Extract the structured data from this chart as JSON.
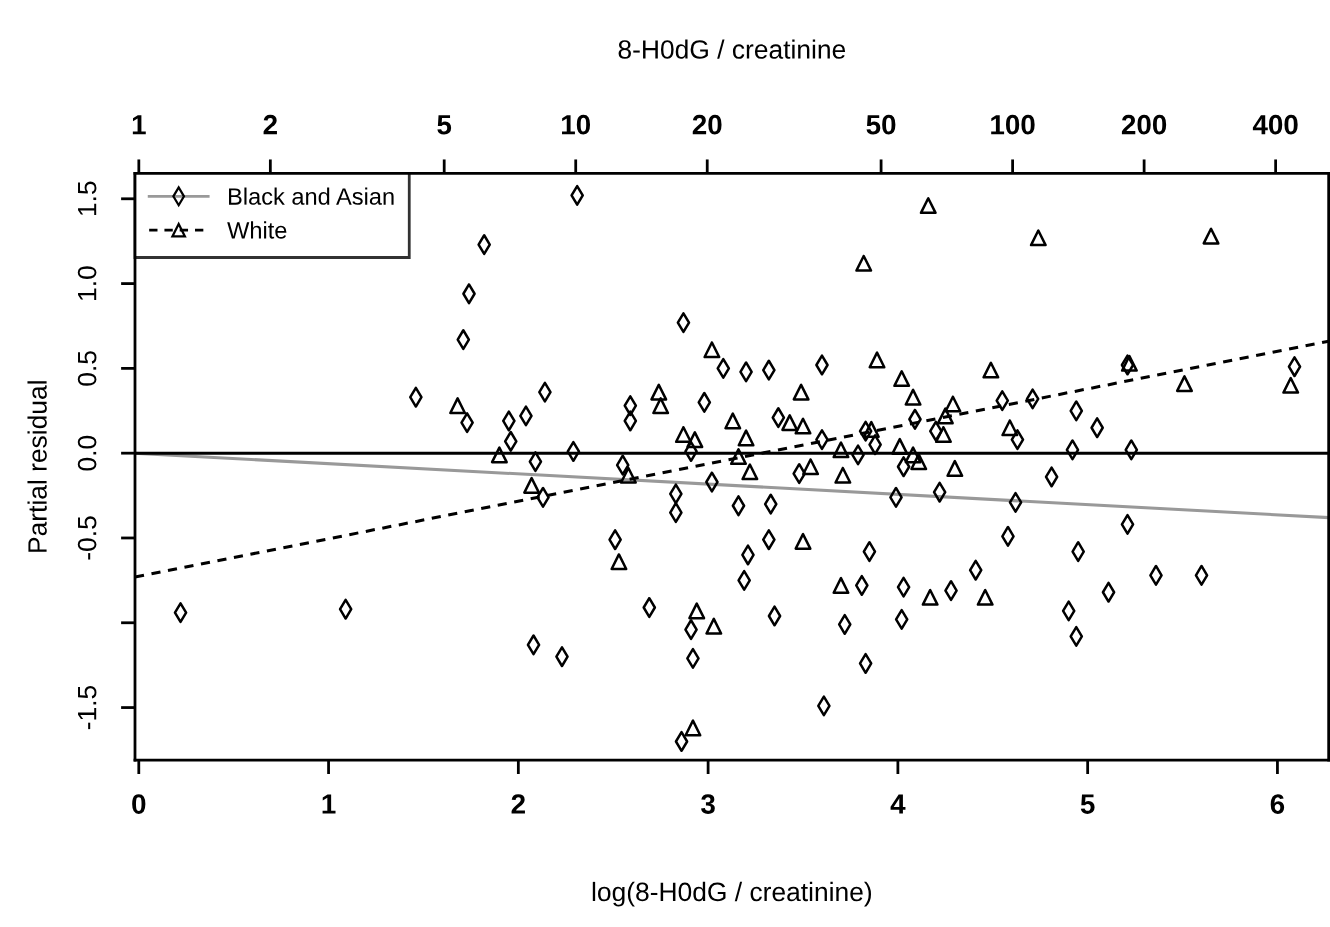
{
  "chart_data": {
    "type": "scatter",
    "xlabel": "log(8-H0dG / creatinine)",
    "ylabel": "Partial residual",
    "x2label": "8-H0dG / creatinine",
    "xlim": [
      -0.02,
      6.27
    ],
    "ylim": [
      -1.81,
      1.65
    ],
    "xticks": [
      0,
      1,
      2,
      3,
      4,
      5,
      6
    ],
    "yticks": [
      {
        "value": -1.5,
        "label": "-1.5"
      },
      {
        "value": -1.0,
        "label": null
      },
      {
        "value": -0.5,
        "label": "-0.5"
      },
      {
        "value": 0,
        "label": "0.0"
      },
      {
        "value": 0.5,
        "label": "0.5"
      },
      {
        "value": 1.0,
        "label": "1.0"
      },
      {
        "value": 1.5,
        "label": "1.5"
      }
    ],
    "x2lim": [
      0.98,
      529
    ],
    "log": "x2",
    "x2ticks": [
      1,
      2,
      5,
      10,
      20,
      50,
      100,
      200,
      400
    ],
    "grid": false,
    "legend": "top left",
    "ref_lines": [
      {
        "axis": "y",
        "value": 0,
        "color": "#000000",
        "line_style": "solid"
      }
    ],
    "series": [
      {
        "name": "Black and Asian",
        "marker": "diamond",
        "color": "#000000",
        "x": [
          0.22,
          1.09,
          1.46,
          1.73,
          1.71,
          1.74,
          1.82,
          1.95,
          2.04,
          1.96,
          2.14,
          2.09,
          2.13,
          2.08,
          2.23,
          2.31,
          2.29,
          2.59,
          2.59,
          2.55,
          2.51,
          2.69,
          2.87,
          2.98,
          2.91,
          2.83,
          2.83,
          3.02,
          3.08,
          3.2,
          3.32,
          3.16,
          3.33,
          3.21,
          3.32,
          3.19,
          3.35,
          2.91,
          2.92,
          2.86,
          3.37,
          3.48,
          3.6,
          3.6,
          3.61,
          3.72,
          3.81,
          3.85,
          3.83,
          3.79,
          3.83,
          3.88,
          4.09,
          3.99,
          4.03,
          4.02,
          4.03,
          4.22,
          4.55,
          4.71,
          4.94,
          5.05,
          4.92,
          5.23,
          4.63,
          4.2,
          4.81,
          4.62,
          4.58,
          5.21,
          4.95,
          4.41,
          4.28,
          5.36,
          5.6,
          5.11,
          4.9,
          4.94,
          6.09,
          5.21
        ],
        "values": [
          -0.94,
          -0.92,
          0.33,
          0.18,
          0.67,
          0.94,
          1.23,
          0.19,
          0.22,
          0.07,
          0.36,
          -0.05,
          -0.26,
          -1.13,
          -1.2,
          1.52,
          0.01,
          0.28,
          0.19,
          -0.07,
          -0.51,
          -0.91,
          0.77,
          0.3,
          0.01,
          -0.24,
          -0.35,
          -0.17,
          0.5,
          0.48,
          0.49,
          -0.31,
          -0.3,
          -0.6,
          -0.51,
          -0.75,
          -0.96,
          -1.04,
          -1.21,
          -1.7,
          0.21,
          -0.12,
          0.52,
          0.08,
          -1.49,
          -1.01,
          -0.78,
          -0.58,
          -1.24,
          -0.01,
          0.13,
          0.05,
          0.2,
          -0.26,
          -0.79,
          -0.98,
          -0.08,
          -0.23,
          0.31,
          0.32,
          0.25,
          0.15,
          0.02,
          0.02,
          0.08,
          0.13,
          -0.14,
          -0.29,
          -0.49,
          -0.42,
          -0.58,
          -0.69,
          -0.81,
          -0.72,
          -0.72,
          -0.82,
          -0.93,
          -1.08,
          0.51,
          0.52
        ]
      },
      {
        "type": "line",
        "color": "#999999",
        "line_style": "solid",
        "x": [
          -0.02,
          6.27
        ],
        "values": [
          0.0,
          -0.38
        ]
      },
      {
        "name": "White",
        "marker": "triangle",
        "color": "#000000",
        "x": [
          1.68,
          1.9,
          2.07,
          2.74,
          2.75,
          2.58,
          2.53,
          2.87,
          2.93,
          3.02,
          3.13,
          3.2,
          3.16,
          3.22,
          3.49,
          3.43,
          3.5,
          3.54,
          3.5,
          3.7,
          3.7,
          3.71,
          3.82,
          3.89,
          4.02,
          4.08,
          4.16,
          4.17,
          2.94,
          3.03,
          2.92,
          3.86,
          4.01,
          4.08,
          4.11,
          4.74,
          5.65,
          4.49,
          5.22,
          5.51,
          6.07,
          4.29,
          4.25,
          4.24,
          4.59,
          4.3,
          4.46
        ],
        "values": [
          0.28,
          -0.01,
          -0.19,
          0.36,
          0.28,
          -0.13,
          -0.64,
          0.11,
          0.08,
          0.61,
          0.19,
          0.09,
          -0.02,
          -0.11,
          0.36,
          0.18,
          0.16,
          -0.08,
          -0.52,
          -0.78,
          0.02,
          -0.13,
          1.12,
          0.55,
          0.44,
          0.33,
          1.46,
          -0.85,
          -0.93,
          -1.02,
          -1.62,
          0.14,
          0.04,
          -0.01,
          -0.05,
          1.27,
          1.28,
          0.49,
          0.53,
          0.41,
          0.4,
          0.29,
          0.22,
          0.11,
          0.15,
          -0.09,
          -0.85
        ]
      },
      {
        "type": "line",
        "color": "#000000",
        "line_style": "dashed",
        "x": [
          -0.02,
          6.27
        ],
        "values": [
          -0.73,
          0.66
        ]
      }
    ]
  }
}
